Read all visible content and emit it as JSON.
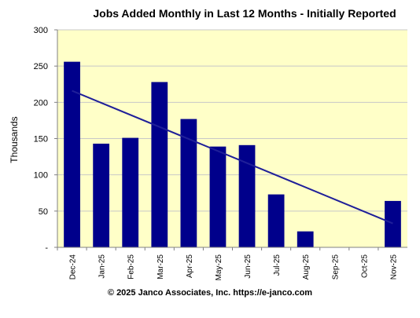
{
  "chart_data": {
    "type": "bar",
    "title": "Jobs Added Monthly in Last 12 Months - Initially Reported",
    "ylabel": "Thousands",
    "xlabel": "",
    "ylim": [
      0,
      300
    ],
    "yticks": [
      0,
      50,
      100,
      150,
      200,
      250,
      300
    ],
    "ytick_labels": [
      "-",
      "50",
      "100",
      "150",
      "200",
      "250",
      "300"
    ],
    "categories": [
      "Dec-24",
      "Jan-25",
      "Feb-25",
      "Mar-25",
      "Apr-25",
      "May-25",
      "Jun-25",
      "Jul-25",
      "Aug-25",
      "Sep-25",
      "Oct-25",
      "Nov-25"
    ],
    "values": [
      256,
      143,
      151,
      228,
      177,
      139,
      141,
      73,
      22,
      null,
      null,
      64
    ],
    "trendline": {
      "start": 216,
      "end": 33
    },
    "grid": true,
    "colors": {
      "bar": "#00008b",
      "trend": "#1f1f99",
      "plot_bg": "#ffffc8",
      "grid": "#c8c8c8"
    }
  },
  "footer": "© 2025 Janco Associates, Inc. https://e-janco.com"
}
